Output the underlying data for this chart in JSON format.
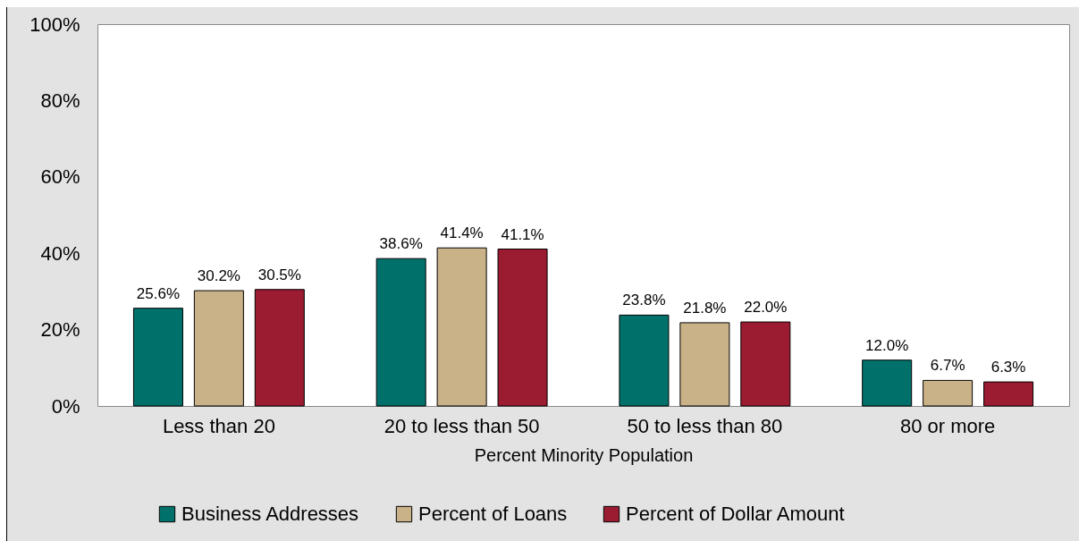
{
  "chart_data": {
    "type": "bar",
    "xlabel": "Percent Minority Population",
    "categories": [
      "Less than 20",
      "20 to less than 50",
      "50 to less than 80",
      "80 or more"
    ],
    "series": [
      {
        "name": "Business Addresses",
        "color": "#00716a",
        "values": [
          25.6,
          38.6,
          23.8,
          12.0
        ],
        "value_labels": [
          "25.6%",
          "38.6%",
          "23.8%",
          "12.0%"
        ]
      },
      {
        "name": "Percent of Loans",
        "color": "#c9b188",
        "values": [
          30.2,
          41.4,
          21.8,
          6.7
        ],
        "value_labels": [
          "30.2%",
          "41.4%",
          "21.8%",
          "6.7%"
        ]
      },
      {
        "name": "Percent of Dollar Amount",
        "color": "#9b1b31",
        "values": [
          30.5,
          41.1,
          22.0,
          6.3
        ],
        "value_labels": [
          "30.5%",
          "41.1%",
          "22.0%",
          "6.3%"
        ]
      }
    ],
    "ylim": [
      0,
      100
    ],
    "yticks": [
      {
        "value": 0,
        "label": "0%"
      },
      {
        "value": 20,
        "label": "20%"
      },
      {
        "value": 40,
        "label": "40%"
      },
      {
        "value": 60,
        "label": "60%"
      },
      {
        "value": 80,
        "label": "80%"
      },
      {
        "value": 100,
        "label": "100%"
      }
    ],
    "legend": "bottom"
  }
}
